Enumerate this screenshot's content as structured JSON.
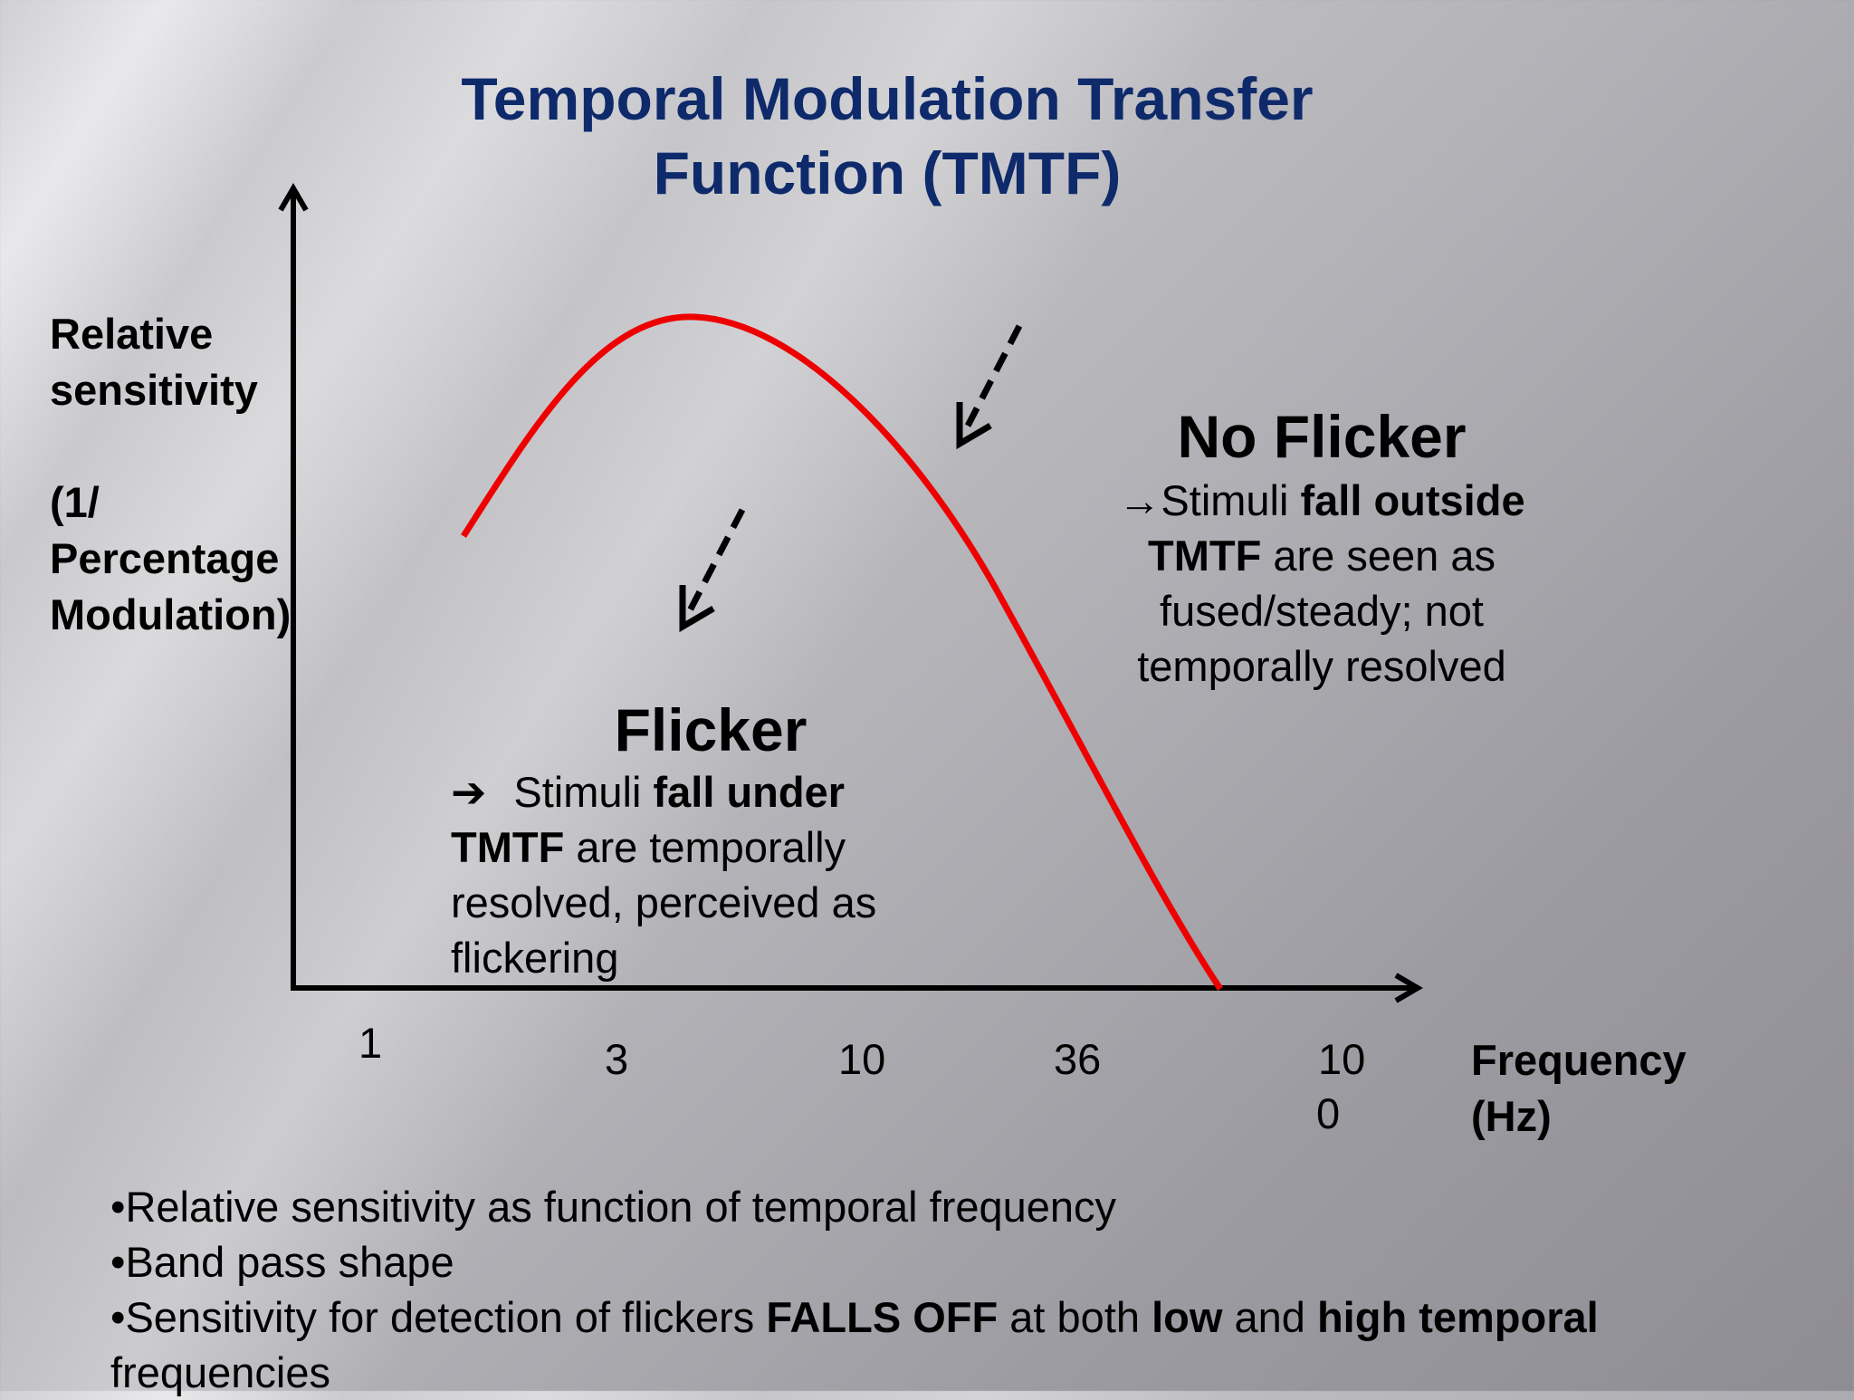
{
  "title": {
    "line1": "Temporal Modulation Transfer",
    "line2": "Function (TMTF)"
  },
  "y_axis": {
    "label_line1": "Relative",
    "label_line2": "sensitivity",
    "label_line3": "(1/",
    "label_line4": "Percentage",
    "label_line5": "Modulation)"
  },
  "x_axis": {
    "label_line1": "Frequency",
    "label_line2": "(Hz)",
    "ticks": [
      "1",
      "3",
      "10",
      "36",
      "10",
      "0"
    ]
  },
  "flicker": {
    "title": "Flicker",
    "arrow": "➔",
    "text_a": "Stimuli ",
    "text_b": "fall under",
    "text_c": "TMTF",
    "text_d": " are temporally",
    "text_e": "resolved, perceived as",
    "text_f": "flickering"
  },
  "no_flicker": {
    "title": "No Flicker",
    "arrow": "→",
    "text_a": "Stimuli ",
    "text_b": "fall outside",
    "text_c": "TMTF",
    "text_d": " are seen as",
    "text_e": "fused/steady; not",
    "text_f": "temporally resolved"
  },
  "bullets": {
    "b1": "•Relative sensitivity as function of temporal frequency",
    "b2": "•Band pass shape",
    "b3_a": "•Sensitivity for detection of flickers ",
    "b3_b": "FALLS OFF",
    "b3_c": " at both ",
    "b3_d": "low",
    "b3_e": " and ",
    "b3_f": "high temporal",
    "b3_g": "frequencies"
  },
  "colors": {
    "title": "#0e2a6b",
    "curve": "#ee0000",
    "axis": "#000000"
  }
}
